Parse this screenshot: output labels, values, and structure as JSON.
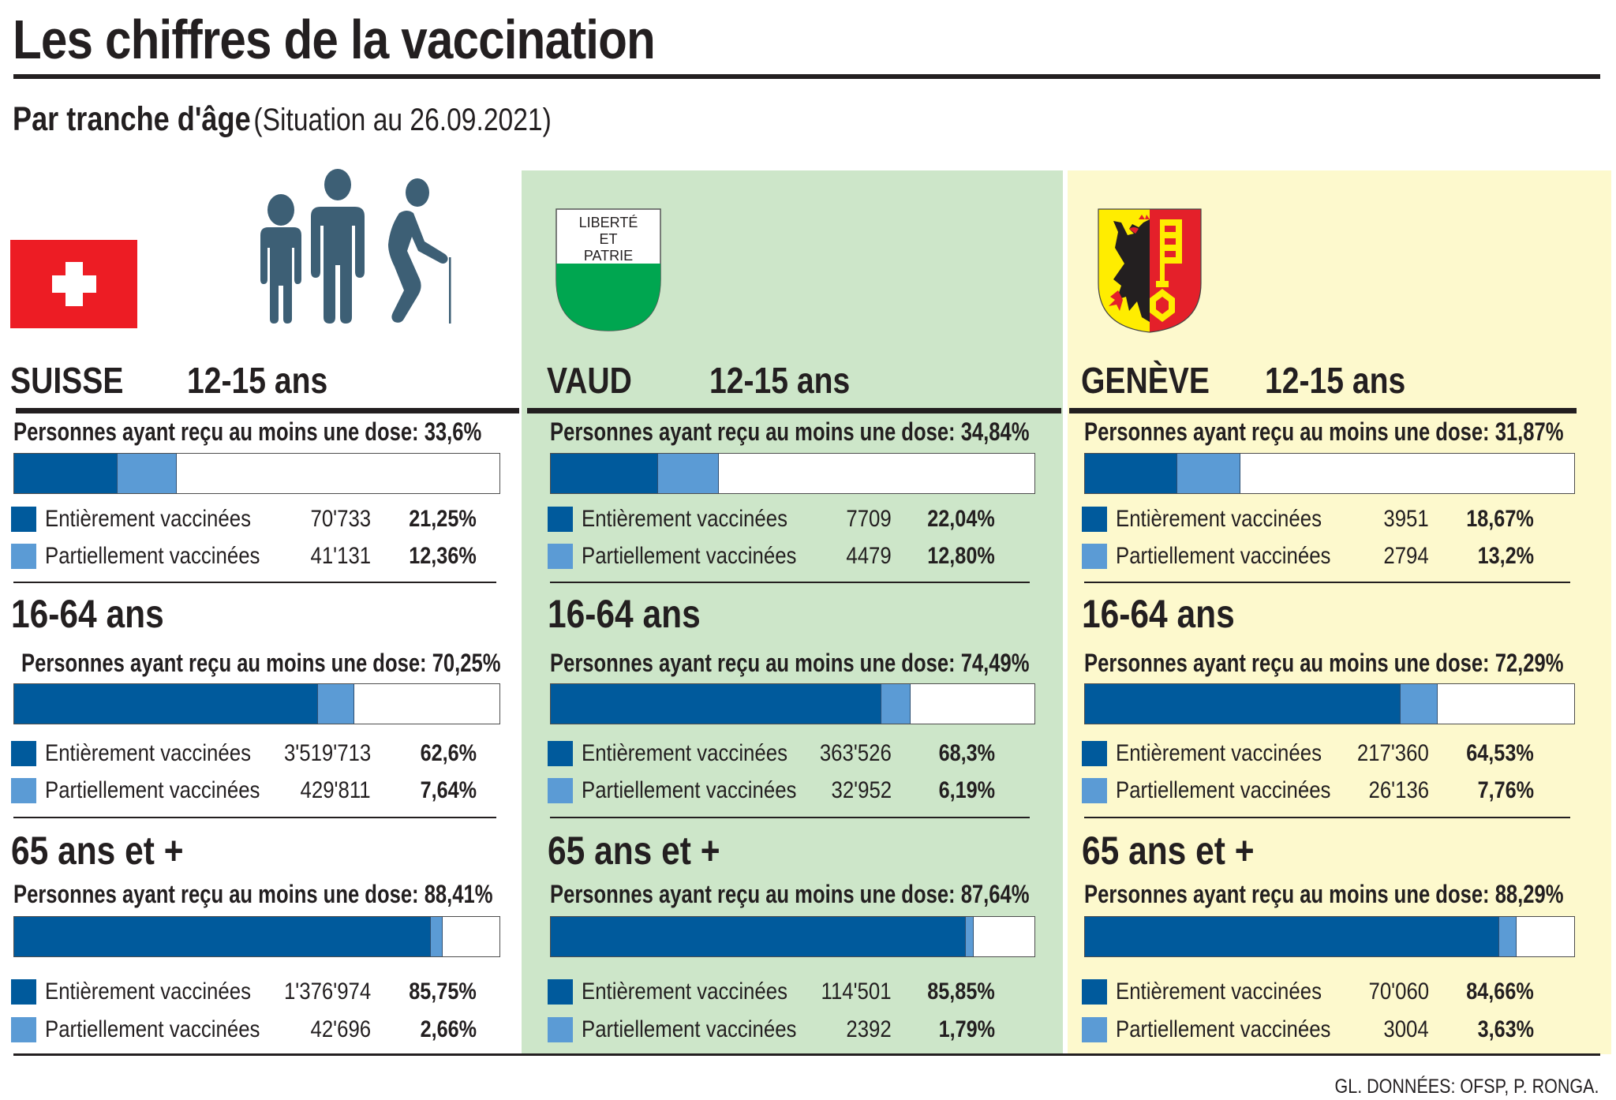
{
  "header": {
    "title": "Les chiffres de la vaccination",
    "subtitle_strong": "Par tranche d'âge",
    "subtitle_light": "(Situation au 26.09.2021)"
  },
  "colors": {
    "fully_vaccinated": "#005a9c",
    "partially_vaccinated": "#5b9bd5",
    "vaud_panel": "#cde6c9",
    "geneve_panel": "#fdf9cd",
    "swiss_red": "#ed1c24"
  },
  "legend_labels": {
    "full": "Entièrement vaccinées",
    "partial": "Partiellement vaccinées"
  },
  "age_groups": [
    "12-15 ans",
    "16-64 ans",
    "65 ans et +"
  ],
  "icons": {
    "suisse": "swiss-flag-icon",
    "people": "age-groups-people-icon",
    "vaud": "vaud-coat-of-arms-icon",
    "geneve": "geneve-coat-of-arms-icon"
  },
  "vaud_shield_text": [
    "LIBERTÉ",
    "ET",
    "PATRIE"
  ],
  "regions": [
    {
      "name": "SUISSE",
      "groups": [
        {
          "dose_text": "Personnes ayant reçu au moins une dose: 33,6%",
          "full_count": "70'733",
          "full_pct": "21,25%",
          "part_count": "41'131",
          "part_pct": "12,36%"
        },
        {
          "dose_text": "Personnes ayant reçu au moins une dose: 70,25%",
          "full_count": "3'519'713",
          "full_pct": "62,6%",
          "part_count": "429'811",
          "part_pct": "7,64%"
        },
        {
          "dose_text": "Personnes ayant reçu au moins une dose: 88,41%",
          "full_count": "1'376'974",
          "full_pct": "85,75%",
          "part_count": "42'696",
          "part_pct": "2,66%"
        }
      ]
    },
    {
      "name": "VAUD",
      "groups": [
        {
          "dose_text": "Personnes ayant reçu au moins une dose: 34,84%",
          "full_count": "7709",
          "full_pct": "22,04%",
          "part_count": "4479",
          "part_pct": "12,80%"
        },
        {
          "dose_text": "Personnes ayant reçu au moins une dose: 74,49%",
          "full_count": "363'526",
          "full_pct": "68,3%",
          "part_count": "32'952",
          "part_pct": "6,19%"
        },
        {
          "dose_text": "Personnes ayant reçu au moins une dose: 87,64%",
          "full_count": "114'501",
          "full_pct": "85,85%",
          "part_count": "2392",
          "part_pct": "1,79%"
        }
      ]
    },
    {
      "name": "GENÈVE",
      "groups": [
        {
          "dose_text": "Personnes ayant reçu au moins une dose: 31,87%",
          "full_count": "3951",
          "full_pct": "18,67%",
          "part_count": "2794",
          "part_pct": "13,2%"
        },
        {
          "dose_text": "Personnes ayant reçu au moins une dose: 72,29%",
          "full_count": "217'360",
          "full_pct": "64,53%",
          "part_count": "26'136",
          "part_pct": "7,76%"
        },
        {
          "dose_text": "Personnes ayant reçu au moins une dose: 88,29%",
          "full_count": "70'060",
          "full_pct": "84,66%",
          "part_count": "3004",
          "part_pct": "3,63%"
        }
      ]
    }
  ],
  "chart_data": {
    "type": "bar",
    "subtype": "stacked-horizontal-percent",
    "title": "Les chiffres de la vaccination",
    "subtitle": "Par tranche d'âge (Situation au 26.09.2021)",
    "xlim": [
      0,
      100
    ],
    "categories": [
      "12-15 ans",
      "16-64 ans",
      "65 ans et +"
    ],
    "panels": [
      {
        "region": "SUISSE",
        "series": [
          {
            "name": "Entièrement vaccinées",
            "values": [
              21.25,
              62.6,
              85.75
            ],
            "counts": [
              70733,
              3519713,
              1376974
            ]
          },
          {
            "name": "Partiellement vaccinées",
            "values": [
              12.36,
              7.64,
              2.66
            ],
            "counts": [
              41131,
              429811,
              42696
            ]
          }
        ],
        "at_least_one_dose": [
          33.6,
          70.25,
          88.41
        ]
      },
      {
        "region": "VAUD",
        "series": [
          {
            "name": "Entièrement vaccinées",
            "values": [
              22.04,
              68.3,
              85.85
            ],
            "counts": [
              7709,
              363526,
              114501
            ]
          },
          {
            "name": "Partiellement vaccinées",
            "values": [
              12.8,
              6.19,
              1.79
            ],
            "counts": [
              4479,
              32952,
              2392
            ]
          }
        ],
        "at_least_one_dose": [
          34.84,
          74.49,
          87.64
        ]
      },
      {
        "region": "GENÈVE",
        "series": [
          {
            "name": "Entièrement vaccinées",
            "values": [
              18.67,
              64.53,
              84.66
            ],
            "counts": [
              3951,
              217360,
              70060
            ]
          },
          {
            "name": "Partiellement vaccinées",
            "values": [
              13.2,
              7.76,
              3.63
            ],
            "counts": [
              2794,
              26136,
              3004
            ]
          }
        ],
        "at_least_one_dose": [
          31.87,
          72.29,
          88.29
        ]
      }
    ]
  },
  "footer": {
    "credit": "GL. DONNÉES: OFSP, P. RONGA."
  }
}
